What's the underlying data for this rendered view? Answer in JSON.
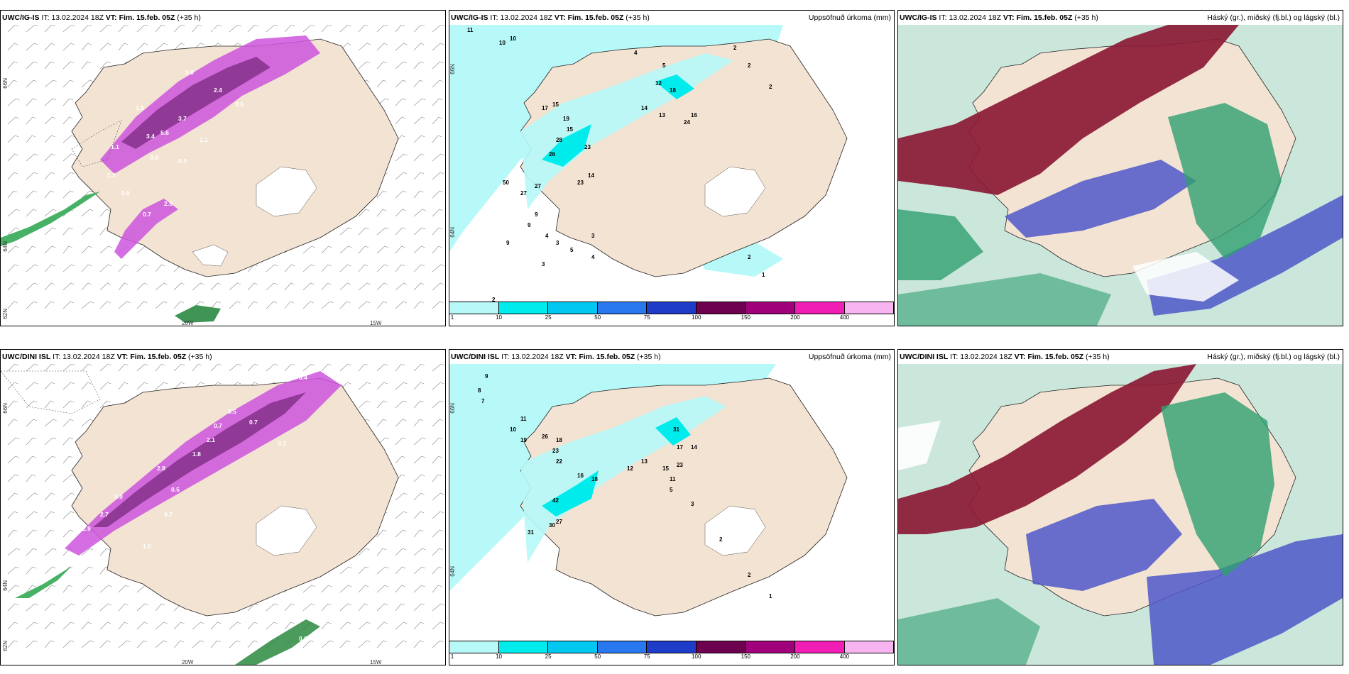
{
  "panels": [
    {
      "model": "UWC/IG-IS",
      "it_label": "IT:",
      "it": "13.02.2024 18Z",
      "vt_label": "VT:",
      "vt": "Fim. 15.feb. 05Z",
      "lead": "(+35 h)",
      "right_title": "",
      "lat_labels": [
        "66N",
        "64N",
        "62N"
      ],
      "lon_labels": [
        "20W",
        "15W"
      ]
    },
    {
      "model": "UWC/IG-IS",
      "it_label": "IT:",
      "it": "13.02.2024 18Z",
      "vt_label": "VT:",
      "vt": "Fim. 15.feb. 05Z",
      "lead": "(+35 h)",
      "right_title": "Uppsöfnuð úrkoma (mm)",
      "lat_labels": [
        "66N",
        "64N"
      ],
      "lon_labels": []
    },
    {
      "model": "UWC/IG-IS",
      "it_label": "IT:",
      "it": "13.02.2024 18Z",
      "vt_label": "VT:",
      "vt": "Fim. 15.feb. 05Z",
      "lead": "(+35 h)",
      "right_title": "Háský (gr.), miðský (fj.bl.) og lágský (bl.)",
      "lat_labels": [],
      "lon_labels": []
    },
    {
      "model": "UWC/DINI ISL",
      "it_label": "IT:",
      "it": "13.02.2024 18Z",
      "vt_label": "VT:",
      "vt": "Fim. 15.feb. 05Z",
      "lead": "(+35 h)",
      "right_title": "",
      "lat_labels": [
        "66N",
        "64N",
        "62N"
      ],
      "lon_labels": [
        "20W",
        "15W"
      ]
    },
    {
      "model": "UWC/DINI ISL",
      "it_label": "IT:",
      "it": "13.02.2024 18Z",
      "vt_label": "VT:",
      "vt": "Fim. 15.feb. 05Z",
      "lead": "(+35 h)",
      "right_title": "Uppsöfnuð úrkoma (mm)",
      "lat_labels": [
        "66N",
        "64N"
      ],
      "lon_labels": []
    },
    {
      "model": "UWC/DINI ISL",
      "it_label": "IT:",
      "it": "13.02.2024 18Z",
      "vt_label": "VT:",
      "vt": "Fim. 15.feb. 05Z",
      "lead": "(+35 h)",
      "right_title": "Háský (gr.), miðský (fj.bl.) og lágský (bl.)",
      "lat_labels": [],
      "lon_labels": []
    }
  ],
  "colorbar": {
    "ticks": [
      "1",
      "10",
      "25",
      "50",
      "75",
      "100",
      "150",
      "200",
      "400"
    ],
    "colors": [
      "#b7f8f8",
      "#00ecec",
      "#00c8f0",
      "#2a78f0",
      "#1e3cc8",
      "#6e0050",
      "#a0007a",
      "#f01eb4",
      "#f8b4f0"
    ]
  },
  "precip_values": {
    "top": [
      "11",
      "10",
      "10",
      "4",
      "5",
      "2",
      "2",
      "2",
      "15",
      "19",
      "17",
      "15",
      "28",
      "26",
      "23",
      "50",
      "27",
      "27",
      "23",
      "14",
      "12",
      "18",
      "14",
      "13",
      "24",
      "16",
      "9",
      "9",
      "9",
      "4",
      "3",
      "3",
      "4",
      "3",
      "5",
      "2",
      "2",
      "1"
    ],
    "bottom": [
      "9",
      "8",
      "7",
      "11",
      "10",
      "19",
      "26",
      "18",
      "23",
      "22",
      "16",
      "42",
      "30",
      "31",
      "27",
      "18",
      "17",
      "31",
      "23",
      "14",
      "12",
      "15",
      "13",
      "11",
      "5",
      "3",
      "2",
      "2",
      "1"
    ]
  },
  "rain_labels": {
    "top": [
      "0.4",
      "3.0",
      "2.4",
      "1.5",
      "3.7",
      "5.6",
      "2.1",
      "3.4",
      "1.1",
      "0.9",
      "1.2",
      "0.3",
      "0.5",
      "0.7",
      "2.5",
      "3.6"
    ],
    "bottom": [
      "0.4",
      "0.5",
      "0.7",
      "2.8",
      "3.9",
      "1.8",
      "2.9",
      "2.7",
      "0.5",
      "0.7",
      "0.3",
      "1.0",
      "2.1",
      "0.7",
      "0.8"
    ]
  },
  "colors": {
    "land": "#f3e3d3",
    "glacier": "#ffffff",
    "ocean": "#ffffff",
    "precip_pink": "#cc55dd",
    "precip_dark": "#7a2a80",
    "cloud_red": "#8b1a35",
    "cloud_blue": "#4f57c8",
    "cloud_green": "#30a070"
  }
}
